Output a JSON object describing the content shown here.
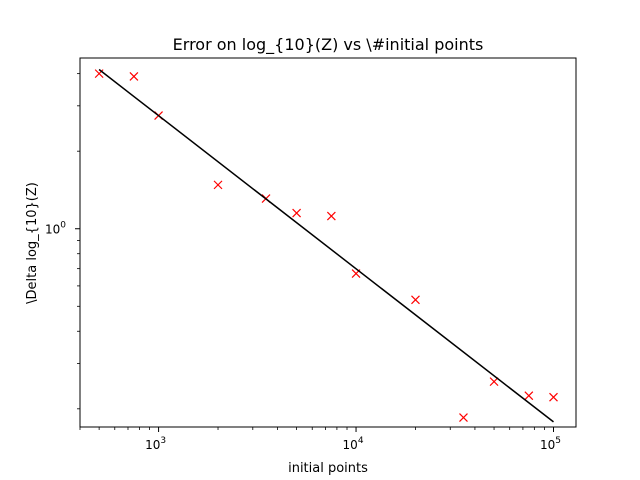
{
  "chart_data": {
    "type": "scatter",
    "title": "Error on log_{10}(Z) vs \\#initial points",
    "xlabel": "initial points",
    "ylabel": "\\Delta log_{10}(Z)",
    "x_scale": "log",
    "y_scale": "log",
    "xlim": [
      400,
      130000
    ],
    "ylim": [
      0.17,
      4.6
    ],
    "x_tick_labels": [
      {
        "base": "10",
        "exp": "3",
        "value": 1000
      },
      {
        "base": "10",
        "exp": "4",
        "value": 10000
      },
      {
        "base": "10",
        "exp": "5",
        "value": 100000
      }
    ],
    "y_tick_labels": [
      {
        "label": "10",
        "exp": "0",
        "value": 1
      }
    ],
    "series": [
      {
        "marker": "x",
        "color": "#ff0000",
        "x": [
          500,
          750,
          1000,
          2000,
          3500,
          5000,
          7500,
          10000,
          20000,
          35000,
          50000,
          75000,
          100000
        ],
        "y": [
          4.0,
          3.9,
          2.75,
          1.48,
          1.31,
          1.15,
          1.12,
          0.67,
          0.53,
          0.185,
          0.255,
          0.225,
          0.222
        ]
      },
      {
        "marker": "line",
        "color": "#000000",
        "x": [
          500,
          100000
        ],
        "y": [
          4.15,
          0.178
        ]
      }
    ]
  }
}
